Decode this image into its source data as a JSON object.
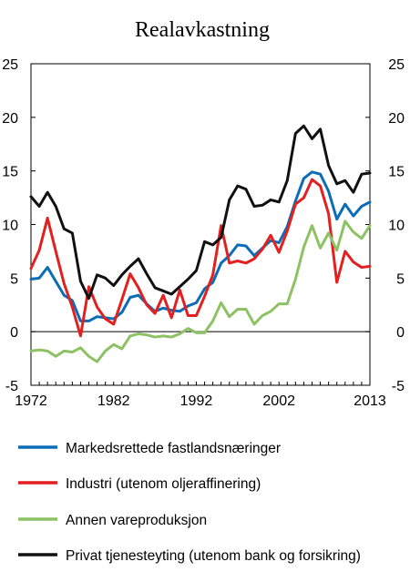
{
  "chart_data": {
    "type": "line",
    "title": "Realavkastning",
    "xlabel": "",
    "ylabel": "",
    "x_tick_labels": [
      "1972",
      "1982",
      "1992",
      "2002",
      "2013"
    ],
    "y_tick_labels": [
      "-5",
      "0",
      "5",
      "10",
      "15",
      "20",
      "25"
    ],
    "ylim": [
      -5,
      25
    ],
    "xlim": [
      1972,
      2013
    ],
    "grid": false,
    "legend_position": "bottom",
    "colors": {
      "Markedsrettede fastlandsnæringer": "#0b6cb8",
      "Industri (utenom oljeraffinering)": "#e2201f",
      "Annen vareproduksjon": "#8cc263",
      "Privat tjenesteyting (utenom bank og forsikring)": "#111111"
    },
    "x": [
      1972,
      1973,
      1974,
      1975,
      1976,
      1977,
      1978,
      1979,
      1980,
      1981,
      1982,
      1983,
      1984,
      1985,
      1986,
      1987,
      1988,
      1989,
      1990,
      1991,
      1992,
      1993,
      1994,
      1995,
      1996,
      1997,
      1998,
      1999,
      2000,
      2001,
      2002,
      2003,
      2004,
      2005,
      2006,
      2007,
      2008,
      2009,
      2010,
      2011,
      2012,
      2013
    ],
    "series": [
      {
        "name": "Markedsrettede fastlandsnæringer",
        "values": [
          4.9,
          5.0,
          6.0,
          4.7,
          3.4,
          2.9,
          1.0,
          1.0,
          1.4,
          1.3,
          1.2,
          1.8,
          3.2,
          3.4,
          2.6,
          1.9,
          2.2,
          2.0,
          1.9,
          2.4,
          2.7,
          4.0,
          4.6,
          6.4,
          7.1,
          8.1,
          8.0,
          7.1,
          7.8,
          8.5,
          8.3,
          9.8,
          12.2,
          14.3,
          14.9,
          14.7,
          13.1,
          10.5,
          11.9,
          10.8,
          11.7,
          12.1
        ]
      },
      {
        "name": "Industri (utenom oljeraffinering)",
        "values": [
          5.9,
          7.6,
          10.6,
          7.5,
          4.5,
          2.3,
          -0.4,
          4.2,
          2.3,
          1.2,
          0.7,
          3.0,
          5.4,
          4.1,
          2.5,
          1.7,
          3.4,
          1.3,
          3.9,
          1.5,
          1.5,
          3.3,
          5.3,
          9.9,
          6.4,
          6.6,
          6.4,
          6.8,
          7.7,
          9.0,
          7.4,
          9.4,
          11.9,
          12.5,
          14.2,
          13.6,
          11.0,
          4.6,
          7.5,
          6.5,
          6.0,
          6.1
        ]
      },
      {
        "name": "Annen vareproduksjon",
        "values": [
          -1.8,
          -1.7,
          -1.8,
          -2.3,
          -1.8,
          -1.9,
          -1.5,
          -2.3,
          -2.8,
          -1.8,
          -1.2,
          -1.6,
          -0.4,
          -0.2,
          -0.3,
          -0.5,
          -0.4,
          -0.5,
          -0.2,
          0.3,
          -0.1,
          -0.1,
          1.0,
          2.7,
          1.4,
          2.1,
          2.1,
          0.7,
          1.5,
          1.9,
          2.6,
          2.6,
          4.9,
          7.9,
          9.9,
          7.8,
          9.2,
          7.6,
          10.3,
          9.3,
          8.7,
          9.9
        ]
      },
      {
        "name": "Privat tjenesteyting (utenom bank og forsikring)",
        "values": [
          12.6,
          11.7,
          13.0,
          11.7,
          9.6,
          9.2,
          4.7,
          3.1,
          5.3,
          5.0,
          4.3,
          5.3,
          6.1,
          6.8,
          5.4,
          4.1,
          3.8,
          3.5,
          4.2,
          4.9,
          5.7,
          8.4,
          8.1,
          8.8,
          12.3,
          13.6,
          13.3,
          11.7,
          11.8,
          12.3,
          12.1,
          14.1,
          18.5,
          19.2,
          18.0,
          18.9,
          15.5,
          13.8,
          14.1,
          13.0,
          14.7,
          14.8
        ]
      }
    ]
  }
}
